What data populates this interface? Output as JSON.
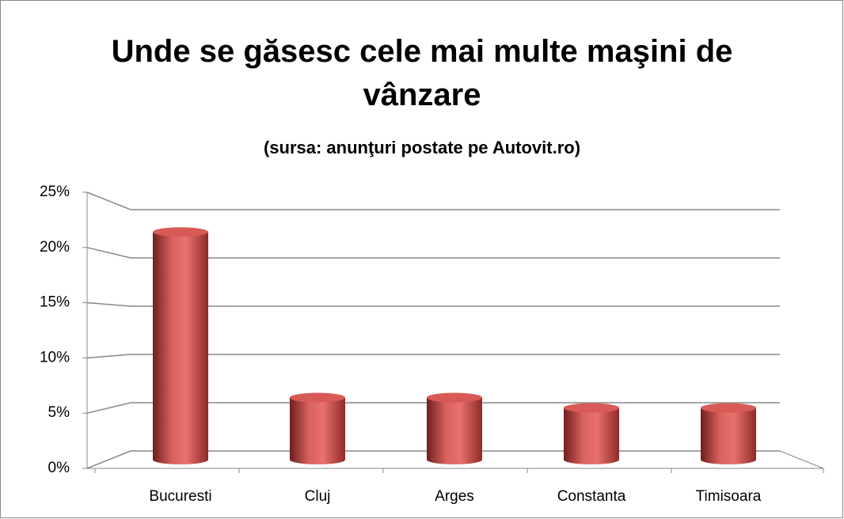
{
  "chart_data": {
    "type": "bar3d",
    "title": "Unde se găsesc cele mai multe maşini de vânzare",
    "subtitle": "(sursa: anunţuri postate pe Autovit.ro)",
    "categories": [
      "Bucuresti",
      "Cluj",
      "Arges",
      "Constanta",
      "Timisoara"
    ],
    "values": [
      22,
      6,
      6,
      5,
      5
    ],
    "color": "#c0504d",
    "ylim": [
      0,
      25
    ],
    "yticks": [
      {
        "value": 0,
        "label": "0%"
      },
      {
        "value": 5,
        "label": "5%"
      },
      {
        "value": 10,
        "label": "10%"
      },
      {
        "value": 15,
        "label": "15%"
      },
      {
        "value": 20,
        "label": "20%"
      },
      {
        "value": 25,
        "label": "25%"
      }
    ],
    "grid": true
  }
}
